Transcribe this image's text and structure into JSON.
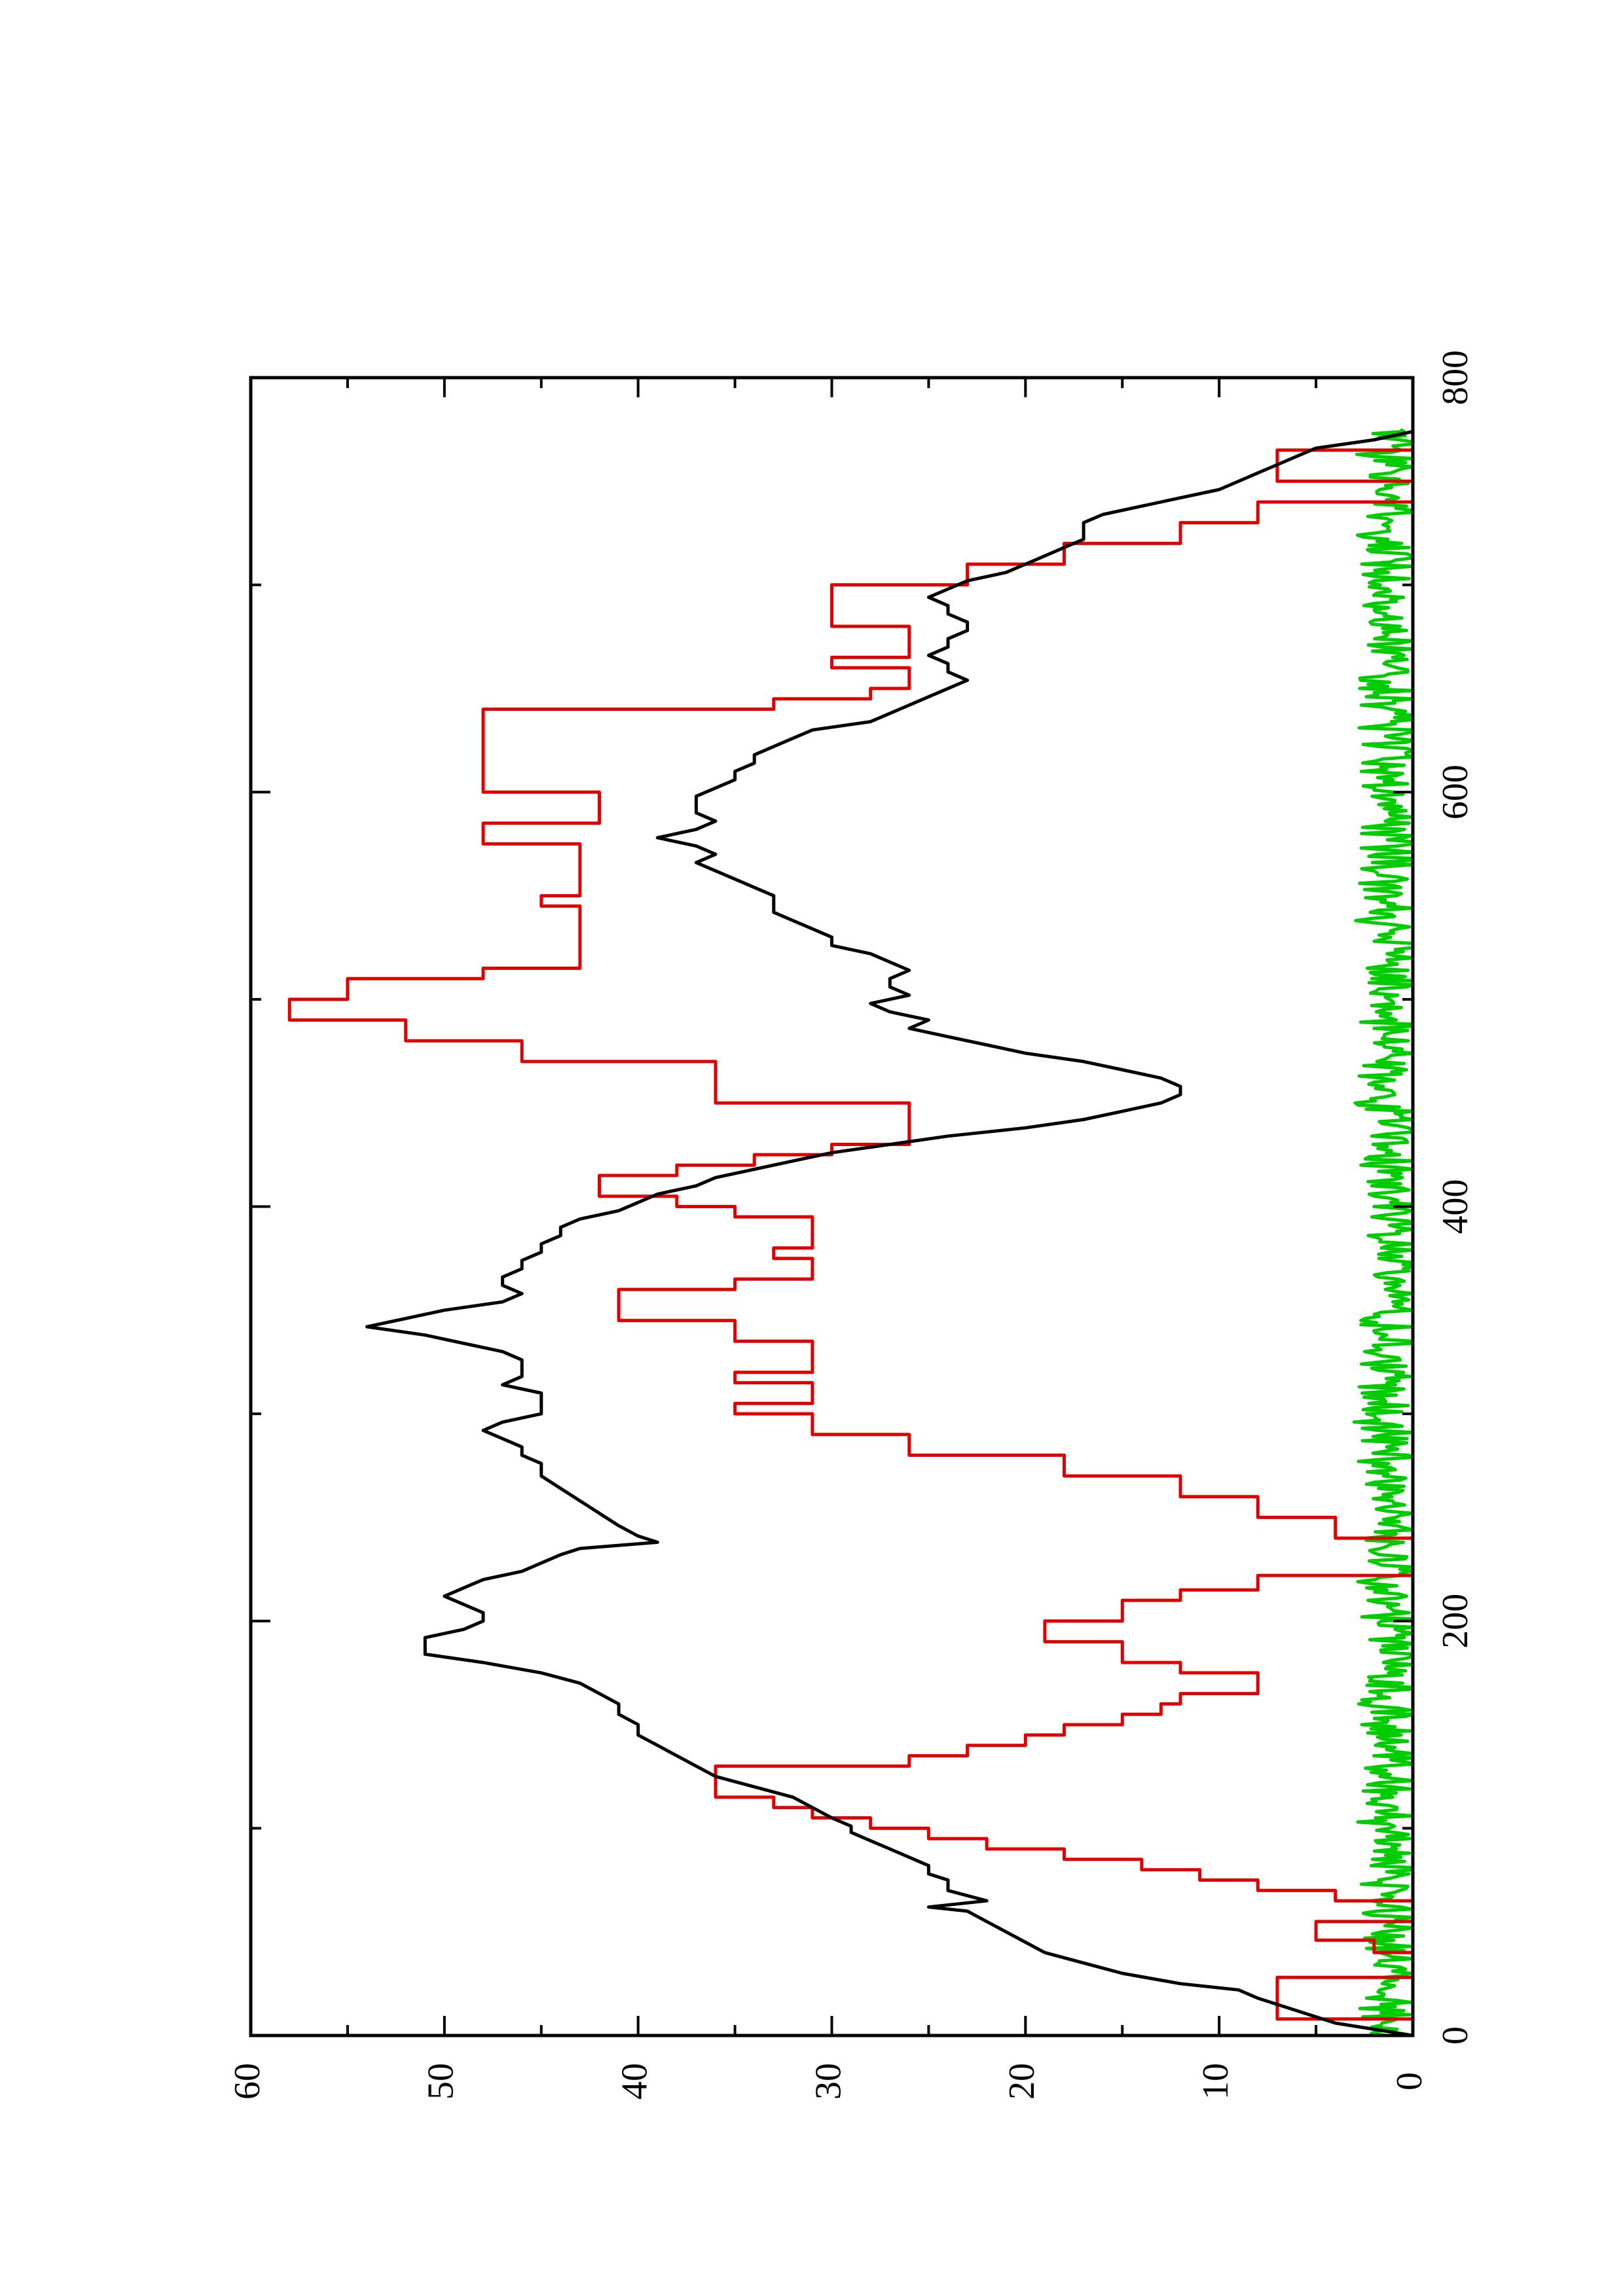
{
  "chart_data": {
    "type": "line",
    "orientation": "rotated 90° counter-clockwise (page portrait, plot landscape)",
    "title": "",
    "xlabel": "",
    "ylabel": "",
    "xlim": [
      0,
      800
    ],
    "ylim": [
      0,
      60
    ],
    "xticks": [
      0,
      200,
      400,
      600,
      800
    ],
    "xticks_minor": [
      100,
      300,
      500,
      700
    ],
    "yticks": [
      0,
      10,
      20,
      30,
      40,
      50,
      60
    ],
    "yticks_minor": [
      5,
      15,
      25,
      35,
      45,
      55
    ],
    "x_tick_labels": [
      "0",
      "200",
      "400",
      "600",
      "800"
    ],
    "y_tick_labels": [
      "0",
      "10",
      "20",
      "30",
      "40",
      "50",
      "60"
    ],
    "grid": false,
    "legend": "none",
    "series": [
      {
        "color": "#000000",
        "style": "line",
        "x": [
          0,
          6,
          12,
          18,
          22,
          25,
          30,
          35,
          40,
          45,
          50,
          55,
          60,
          62,
          65,
          70,
          75,
          78,
          82,
          86,
          90,
          94,
          98,
          101,
          105,
          110,
          115,
          120,
          125,
          130,
          135,
          140,
          145,
          150,
          155,
          160,
          165,
          170,
          175,
          180,
          184,
          188,
          192,
          196,
          200,
          204,
          208,
          212,
          216,
          220,
          224,
          228,
          232,
          235,
          238,
          241,
          246,
          252,
          258,
          264,
          270,
          276,
          280,
          284,
          288,
          292,
          296,
          300,
          306,
          310,
          314,
          318,
          322,
          326,
          330,
          334,
          338,
          342,
          346,
          350,
          354,
          358,
          362,
          366,
          370,
          374,
          378,
          382,
          386,
          390,
          394,
          398,
          402,
          406,
          410,
          414,
          418,
          422,
          426,
          430,
          434,
          438,
          442,
          446,
          450,
          454,
          458,
          462,
          466,
          470,
          474,
          478,
          482,
          486,
          490,
          494,
          498,
          502,
          506,
          510,
          514,
          518,
          522,
          526,
          530,
          534,
          538,
          542,
          546,
          550,
          554,
          558,
          562,
          566,
          570,
          574,
          578,
          582,
          586,
          590,
          594,
          598,
          602,
          606,
          610,
          614,
          618,
          622,
          626,
          630,
          634,
          638,
          642,
          646,
          650,
          654,
          658,
          662,
          666,
          670,
          674,
          678,
          682,
          686,
          690,
          694,
          698,
          702,
          706,
          710,
          714,
          718,
          722,
          726,
          730,
          734,
          738,
          742,
          746,
          750,
          754,
          758,
          762,
          766,
          770,
          774
        ],
        "y": [
          0,
          4,
          6,
          8,
          9,
          12,
          15,
          17,
          19,
          20,
          21,
          22,
          23,
          25,
          22,
          24,
          24,
          25,
          25,
          26,
          27,
          28,
          29,
          29,
          30,
          31,
          32,
          34,
          36,
          37,
          38,
          39,
          40,
          40,
          41,
          41,
          42,
          43,
          45,
          48,
          51,
          51,
          51,
          49,
          48,
          48,
          49,
          50,
          49,
          48,
          46,
          45,
          44,
          43,
          39,
          40,
          41,
          42,
          43,
          44,
          45,
          45,
          46,
          46,
          47,
          48,
          47,
          45,
          45,
          45,
          47,
          46,
          46,
          46,
          47,
          49,
          51,
          54,
          52,
          50,
          47,
          46,
          47,
          47,
          46,
          46,
          45,
          45,
          44,
          44,
          43,
          41,
          40,
          39,
          37,
          36,
          34,
          32,
          30,
          27,
          24,
          20,
          17,
          15,
          13,
          12,
          12,
          13,
          15,
          17,
          20,
          22,
          24,
          26,
          25,
          27,
          28,
          26,
          27,
          27,
          26,
          27,
          28,
          30,
          30,
          31,
          32,
          33,
          33,
          33,
          34,
          35,
          36,
          37,
          36,
          37,
          39,
          37,
          36,
          37,
          37,
          37,
          36,
          35,
          35,
          34,
          34,
          33,
          32,
          31,
          28,
          27,
          26,
          25,
          24,
          23,
          24,
          24,
          25,
          24,
          24,
          23,
          23,
          24,
          24,
          25,
          24,
          23,
          21,
          20,
          19,
          18,
          17,
          17,
          17,
          16,
          14,
          12,
          10,
          9,
          8,
          7,
          6,
          5,
          2,
          0
        ]
      },
      {
        "color": "#e00000",
        "style": "step",
        "x": [
          0,
          8,
          14,
          28,
          33,
          40,
          46,
          55,
          58,
          65,
          70,
          75,
          80,
          85,
          90,
          95,
          100,
          105,
          110,
          115,
          120,
          130,
          135,
          140,
          145,
          150,
          155,
          160,
          165,
          170,
          175,
          180,
          185,
          190,
          195,
          200,
          210,
          215,
          222,
          230,
          240,
          250,
          260,
          270,
          280,
          290,
          300,
          305,
          310,
          315,
          320,
          330,
          335,
          340,
          345,
          350,
          360,
          365,
          370,
          375,
          380,
          390,
          395,
          400,
          405,
          410,
          415,
          420,
          425,
          430,
          440,
          445,
          450,
          460,
          470,
          480,
          490,
          495,
          500,
          510,
          515,
          520,
          535,
          545,
          550,
          560,
          575,
          580,
          585,
          600,
          620,
          640,
          645,
          650,
          655,
          660,
          665,
          675,
          680,
          695,
          700,
          710,
          720,
          730,
          740,
          745,
          750,
          755,
          765,
          770,
          775
        ],
        "y": [
          0,
          7,
          7,
          0,
          0,
          2,
          5,
          0,
          0,
          4,
          8,
          11,
          14,
          18,
          22,
          25,
          28,
          31,
          33,
          36,
          36,
          26,
          23,
          20,
          18,
          15,
          13,
          12,
          8,
          8,
          12,
          15,
          15,
          19,
          19,
          15,
          12,
          8,
          0,
          0,
          4,
          8,
          12,
          18,
          26,
          31,
          35,
          31,
          31,
          35,
          31,
          31,
          35,
          35,
          41,
          41,
          35,
          31,
          31,
          33,
          31,
          31,
          35,
          38,
          42,
          42,
          38,
          34,
          30,
          26,
          26,
          26,
          36,
          36,
          46,
          52,
          58,
          58,
          55,
          48,
          43,
          43,
          43,
          45,
          43,
          43,
          48,
          48,
          42,
          48,
          48,
          33,
          28,
          26,
          26,
          30,
          26,
          26,
          30,
          30,
          23,
          18,
          12,
          8,
          0,
          0,
          7,
          7,
          0,
          0,
          0
        ]
      },
      {
        "color": "#00cc00",
        "style": "line",
        "x_start": 0,
        "x_end": 775,
        "x_step": 1,
        "y_range": [
          0,
          4
        ],
        "y_mean": 1.2
      }
    ]
  }
}
